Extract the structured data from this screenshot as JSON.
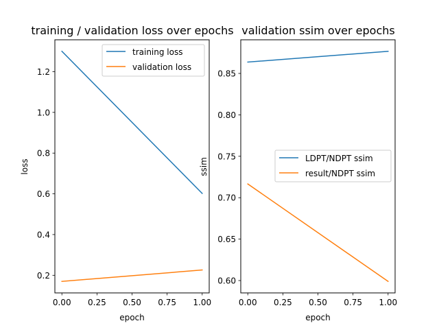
{
  "chart_data": [
    {
      "type": "line",
      "title": "training / validation loss over epochs",
      "xlabel": "epoch",
      "ylabel": "loss",
      "xlim": [
        -0.05,
        1.05
      ],
      "ylim": [
        0.1135,
        1.3565
      ],
      "x_ticks": [
        0.0,
        0.25,
        0.5,
        0.75,
        1.0
      ],
      "x_tick_labels": [
        "0.00",
        "0.25",
        "0.50",
        "0.75",
        "1.00"
      ],
      "y_ticks": [
        0.2,
        0.4,
        0.6,
        0.8,
        1.0,
        1.2
      ],
      "y_tick_labels": [
        "0.2",
        "0.4",
        "0.6",
        "0.8",
        "1.0",
        "1.2"
      ],
      "x": [
        0,
        1
      ],
      "series": [
        {
          "name": "training loss",
          "color": "#1f77b4",
          "values": [
            1.3,
            0.602
          ]
        },
        {
          "name": "validation loss",
          "color": "#ff7f0e",
          "values": [
            0.17,
            0.226
          ]
        }
      ],
      "legend": "top-right",
      "grid": false
    },
    {
      "type": "line",
      "title": "validation ssim over epochs",
      "xlabel": "epoch",
      "ylabel": "ssim",
      "xlim": [
        -0.05,
        1.05
      ],
      "ylim": [
        0.5851,
        0.8906
      ],
      "x_ticks": [
        0.0,
        0.25,
        0.5,
        0.75,
        1.0
      ],
      "x_tick_labels": [
        "0.00",
        "0.25",
        "0.50",
        "0.75",
        "1.00"
      ],
      "y_ticks": [
        0.6,
        0.65,
        0.7,
        0.75,
        0.8,
        0.85
      ],
      "y_tick_labels": [
        "0.60",
        "0.65",
        "0.70",
        "0.75",
        "0.80",
        "0.85"
      ],
      "x": [
        0,
        1
      ],
      "series": [
        {
          "name": "LDPT/NDPT ssim",
          "color": "#1f77b4",
          "values": [
            0.8637,
            0.8767
          ]
        },
        {
          "name": "result/NDPT ssim",
          "color": "#ff7f0e",
          "values": [
            0.7166,
            0.599
          ]
        }
      ],
      "legend": "center-right",
      "grid": false
    }
  ]
}
